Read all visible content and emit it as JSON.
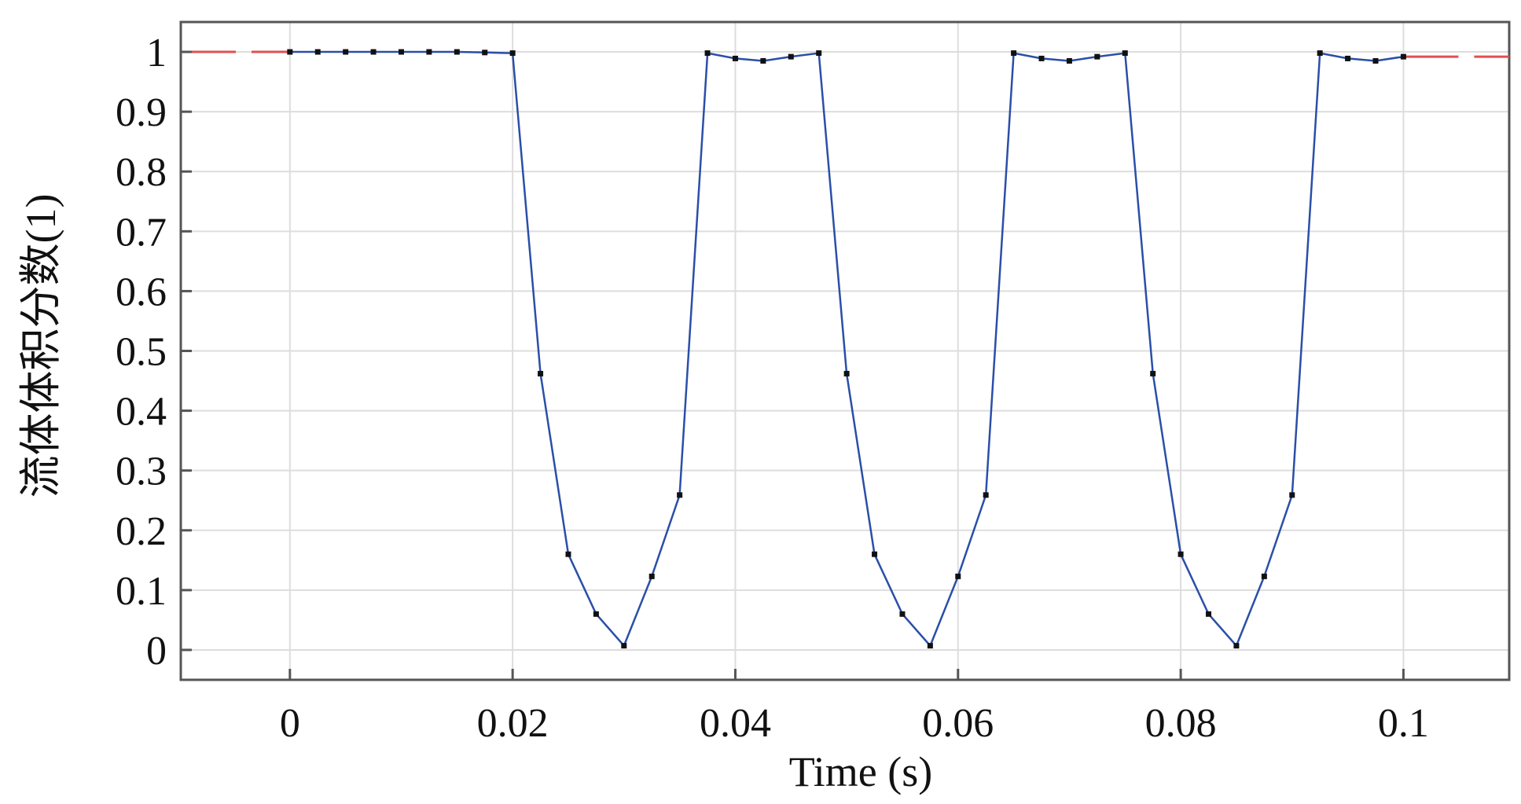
{
  "chart_data": {
    "type": "line",
    "xlabel": "Time (s)",
    "ylabel": "流体体积分数(1)",
    "xlim": [
      -0.0098,
      0.1095
    ],
    "ylim": [
      -0.05,
      1.05
    ],
    "grid": true,
    "x_ticks": [
      {
        "value": 0,
        "label": "0"
      },
      {
        "value": 0.02,
        "label": "0.02"
      },
      {
        "value": 0.04,
        "label": "0.04"
      },
      {
        "value": 0.06,
        "label": "0.06"
      },
      {
        "value": 0.08,
        "label": "0.08"
      },
      {
        "value": 0.1,
        "label": "0.1"
      }
    ],
    "y_ticks": [
      {
        "value": 0,
        "label": "0"
      },
      {
        "value": 0.1,
        "label": "0.1"
      },
      {
        "value": 0.2,
        "label": "0.2"
      },
      {
        "value": 0.3,
        "label": "0.3"
      },
      {
        "value": 0.4,
        "label": "0.4"
      },
      {
        "value": 0.5,
        "label": "0.5"
      },
      {
        "value": 0.6,
        "label": "0.6"
      },
      {
        "value": 0.7,
        "label": "0.7"
      },
      {
        "value": 0.8,
        "label": "0.8"
      },
      {
        "value": 0.9,
        "label": "0.9"
      },
      {
        "value": 1,
        "label": "1"
      }
    ],
    "series": [
      {
        "color": "#2a4fa8",
        "marker_color": "#111111",
        "x": [
          0,
          0.0025,
          0.005,
          0.0075,
          0.01,
          0.0125,
          0.015,
          0.0175,
          0.02,
          0.0225,
          0.025,
          0.0275,
          0.03,
          0.0325,
          0.035,
          0.0375,
          0.04,
          0.0425,
          0.045,
          0.0475,
          0.05,
          0.0525,
          0.055,
          0.0575,
          0.06,
          0.0625,
          0.065,
          0.0675,
          0.07,
          0.0725,
          0.075,
          0.0775,
          0.08,
          0.0825,
          0.085,
          0.0875,
          0.09,
          0.0925,
          0.095,
          0.0975,
          0.1
        ],
        "y": [
          1.0,
          1.0,
          1.0,
          1.0,
          1.0,
          1.0,
          1.0,
          0.999,
          0.998,
          0.462,
          0.16,
          0.06,
          0.007,
          0.123,
          0.259,
          0.998,
          0.989,
          0.985,
          0.992,
          0.998,
          0.462,
          0.16,
          0.06,
          0.007,
          0.123,
          0.259,
          0.998,
          0.989,
          0.985,
          0.992,
          0.998,
          0.462,
          0.16,
          0.06,
          0.007,
          0.123,
          0.259,
          0.998,
          0.989,
          0.985,
          0.992
        ]
      }
    ],
    "reference_lines": [
      {
        "style": "dashed",
        "color": "#e05050",
        "x": [
          -0.0098,
          0.0
        ],
        "y": [
          1.0,
          1.0
        ]
      },
      {
        "style": "dashed",
        "color": "#e05050",
        "x": [
          0.1,
          0.1095
        ],
        "y": [
          0.992,
          0.992
        ]
      }
    ]
  }
}
